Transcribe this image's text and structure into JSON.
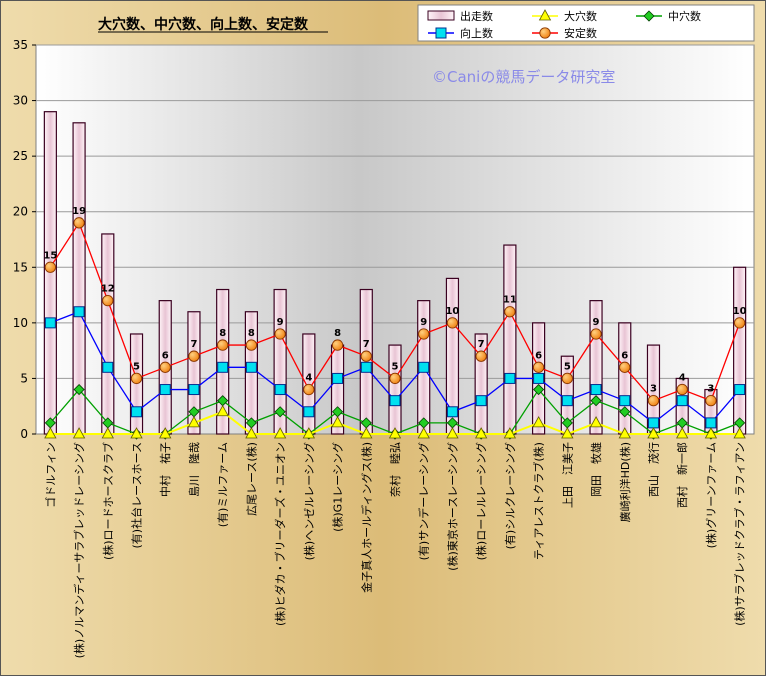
{
  "chart_data": {
    "type": "bar",
    "title": "大穴数、中穴数、向上数、安定数",
    "watermark": "©Caniの競馬データ研究室",
    "ylim": [
      0,
      35
    ],
    "yticks": [
      0,
      5,
      10,
      15,
      20,
      25,
      30,
      35
    ],
    "grid": true,
    "legend_position": "top-right",
    "categories": [
      "ゴドルフィン",
      "(株)ノルマンディーサラブレッドレーシング",
      "(株)ロードホースクラブ",
      "(有)社台レースホース",
      "中村　祐子",
      "島川　隆哉",
      "(有)ミルファーム",
      "広尾レース(株)",
      "(株)ヒダカ・ブリーダーズ・ユニオン",
      "(株)ヘンゼルレーシング",
      "(株)G1レーシング",
      "金子真人ホールディングス(株)",
      "奈村　睦弘",
      "(有)サンデーレーシング",
      "(株)東京ホースレーシング",
      "(株)ローレルレーシング",
      "(有)シルクレーシング",
      "ティアレストクラブ(株)",
      "上田　江美子",
      "岡田　牧雄",
      "廣崎利洋HD(株)",
      "西山　茂行",
      "西村　新一郎",
      "(株)グリーンファーム",
      "(株)サラブレッドクラブ・ラフィアン"
    ],
    "series": [
      {
        "name": "出走数",
        "type": "bar",
        "color": "#f2dce6",
        "values": [
          29,
          28,
          18,
          9,
          12,
          11,
          13,
          11,
          13,
          9,
          8,
          13,
          8,
          12,
          14,
          9,
          17,
          10,
          7,
          12,
          10,
          8,
          5,
          4,
          15
        ]
      },
      {
        "name": "大穴数",
        "type": "line",
        "color": "#ffff00",
        "values": [
          0,
          0,
          0,
          0,
          0,
          1,
          2,
          0,
          0,
          0,
          1,
          0,
          0,
          0,
          0,
          0,
          0,
          1,
          0,
          1,
          0,
          0,
          0,
          0,
          0
        ]
      },
      {
        "name": "中穴数",
        "type": "line",
        "color": "#00a000",
        "values": [
          1,
          4,
          1,
          0,
          0,
          2,
          3,
          1,
          2,
          0,
          2,
          1,
          0,
          1,
          1,
          0,
          0,
          4,
          1,
          3,
          2,
          0,
          1,
          0,
          1
        ]
      },
      {
        "name": "向上数",
        "type": "line",
        "color": "#0000ff",
        "values": [
          10,
          11,
          6,
          2,
          4,
          4,
          6,
          6,
          4,
          2,
          5,
          6,
          3,
          6,
          2,
          3,
          5,
          5,
          3,
          4,
          3,
          1,
          3,
          1,
          4
        ]
      },
      {
        "name": "安定数",
        "type": "line",
        "color": "#ff0000",
        "values": [
          15,
          19,
          12,
          5,
          6,
          7,
          8,
          8,
          9,
          4,
          8,
          7,
          5,
          9,
          10,
          7,
          11,
          6,
          5,
          9,
          6,
          3,
          4,
          3,
          10
        ]
      }
    ],
    "data_labels_series": "安定数"
  }
}
